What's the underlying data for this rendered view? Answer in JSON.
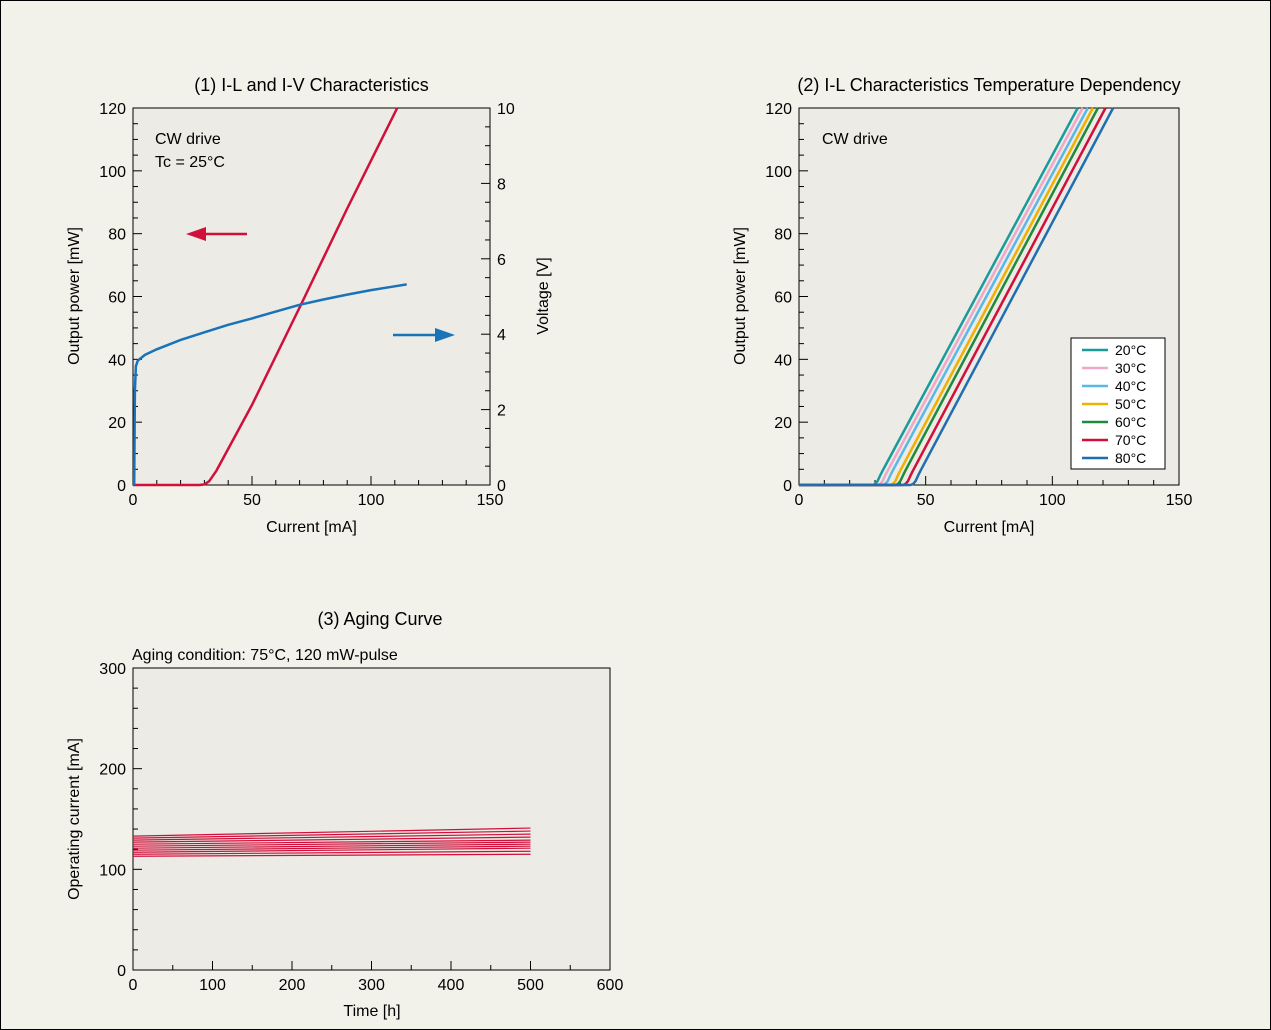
{
  "chart_data": [
    {
      "type": "line",
      "title": "(1) I-L and I-V Characteristics",
      "xlabel": "Current [mA]",
      "ylabel": "Output power [mW]",
      "ylabel_right": "Voltage [V]",
      "xlim": [
        0,
        150
      ],
      "ylim": [
        0,
        120
      ],
      "ylim_right": [
        0,
        10
      ],
      "xticks": [
        0,
        50,
        100,
        150
      ],
      "yticks": [
        0,
        20,
        40,
        60,
        80,
        100,
        120
      ],
      "yticks_right": [
        0,
        2,
        4,
        6,
        8,
        10
      ],
      "annotations": [
        "CW drive",
        "Tc = 25°C"
      ],
      "arrows": [
        {
          "direction": "left",
          "axis": "left",
          "color": "#d0103a"
        },
        {
          "direction": "right",
          "axis": "right",
          "color": "#1a72b8"
        }
      ],
      "series": [
        {
          "axis": "left",
          "color": "#d0103a",
          "x": [
            0,
            28,
            30,
            32,
            35,
            50,
            70,
            90,
            111
          ],
          "y": [
            0,
            0,
            0.2,
            1.2,
            4.5,
            25.5,
            56.5,
            88,
            120
          ]
        },
        {
          "axis": "right",
          "color": "#1a72b8",
          "x": [
            0.5,
            0.8,
            1.2,
            2,
            5,
            10,
            20,
            30,
            40,
            50,
            60,
            70,
            80,
            90,
            100,
            110,
            115
          ],
          "y": [
            0,
            2.5,
            3.15,
            3.3,
            3.45,
            3.6,
            3.85,
            4.05,
            4.25,
            4.42,
            4.6,
            4.78,
            4.92,
            5.05,
            5.17,
            5.27,
            5.32
          ]
        }
      ]
    },
    {
      "type": "line",
      "title": "(2) I-L Characteristics Temperature Dependency",
      "xlabel": "Current [mA]",
      "ylabel": "Output power [mW]",
      "xlim": [
        0,
        150
      ],
      "ylim": [
        0,
        120
      ],
      "xticks": [
        0,
        50,
        100,
        150
      ],
      "yticks": [
        0,
        20,
        40,
        60,
        80,
        100,
        120
      ],
      "annotations": [
        "CW drive"
      ],
      "legend_position": "bottom-right",
      "series": [
        {
          "name": "20°C",
          "color": "#1a9b9b",
          "threshold": 31,
          "end": 110
        },
        {
          "name": "30°C",
          "color": "#f0a8c8",
          "threshold": 33,
          "end": 112
        },
        {
          "name": "40°C",
          "color": "#5ab8e6",
          "threshold": 35,
          "end": 114
        },
        {
          "name": "50°C",
          "color": "#f0b000",
          "threshold": 38,
          "end": 116
        },
        {
          "name": "60°C",
          "color": "#1f8a3a",
          "threshold": 40,
          "end": 118
        },
        {
          "name": "70°C",
          "color": "#d0103a",
          "threshold": 43,
          "end": 121
        },
        {
          "name": "80°C",
          "color": "#1f6fb0",
          "threshold": 46,
          "end": 124
        }
      ]
    },
    {
      "type": "line",
      "title": "(3) Aging Curve",
      "subtitle": "Aging condition: 75°C, 120 mW-pulse",
      "xlabel": "Time [h]",
      "ylabel": "Operating current [mA]",
      "xlim": [
        0,
        600
      ],
      "ylim": [
        0,
        300
      ],
      "xticks": [
        0,
        100,
        200,
        300,
        400,
        500,
        600
      ],
      "yticks": [
        0,
        100,
        200,
        300
      ],
      "series_color": "#d0103a",
      "series": [
        {
          "x": [
            0,
            500
          ],
          "y": [
            113,
            115
          ]
        },
        {
          "x": [
            0,
            500
          ],
          "y": [
            115,
            118
          ]
        },
        {
          "x": [
            0,
            500
          ],
          "y": [
            117,
            121
          ]
        },
        {
          "x": [
            0,
            500
          ],
          "y": [
            119,
            123
          ]
        },
        {
          "x": [
            0,
            500
          ],
          "y": [
            121,
            125
          ]
        },
        {
          "x": [
            0,
            500
          ],
          "y": [
            123,
            127
          ]
        },
        {
          "x": [
            0,
            500
          ],
          "y": [
            125,
            129
          ]
        },
        {
          "x": [
            0,
            500
          ],
          "y": [
            127,
            132
          ]
        },
        {
          "x": [
            0,
            500
          ],
          "y": [
            129,
            135
          ]
        },
        {
          "x": [
            0,
            500
          ],
          "y": [
            131,
            138
          ]
        },
        {
          "x": [
            0,
            500
          ],
          "y": [
            133,
            141
          ]
        }
      ]
    }
  ]
}
